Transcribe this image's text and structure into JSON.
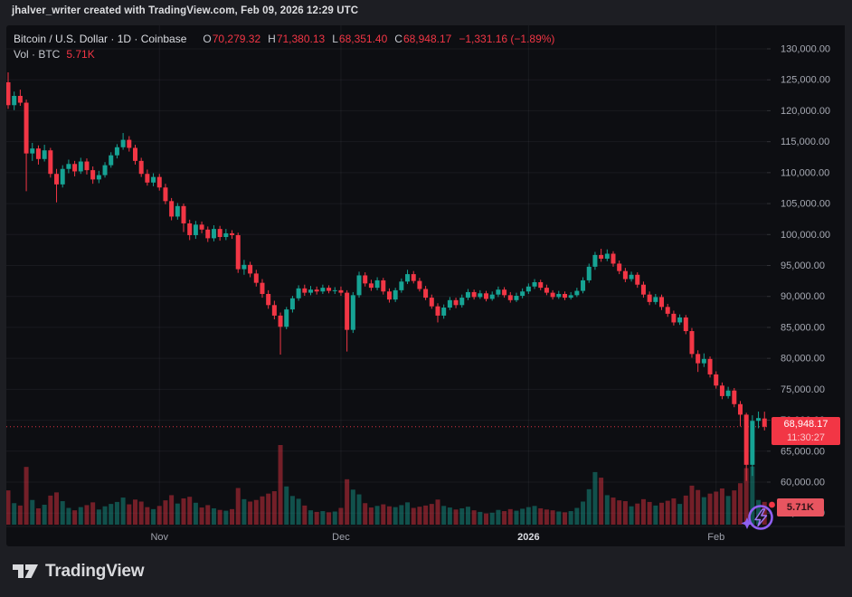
{
  "attribution": "jhalver_writer created with TradingView.com, Feb 09, 2026 12:29 UTC",
  "header": {
    "symbol_line": "Bitcoin / U.S. Dollar · 1D · Coinbase",
    "ohlc": {
      "o_label": "O",
      "o": "70,279.32",
      "h_label": "H",
      "h": "71,380.13",
      "l_label": "L",
      "l": "68,351.40",
      "c_label": "C",
      "c": "68,948.17",
      "change": "−1,331.16 (−1.89%)"
    },
    "volume_line": {
      "label": "Vol · BTC",
      "value": "5.71K"
    }
  },
  "price_axis_label": {
    "price": "68,948.17",
    "countdown": "11:30:27"
  },
  "volume_axis_label": "5.71K",
  "footer": {
    "brand": "TradingView"
  },
  "colors": {
    "up": "#16a394",
    "down": "#f23645",
    "volume_up": "rgba(22,163,148,0.45)",
    "volume_down": "rgba(242,54,69,0.45)",
    "grid": "rgba(240,243,250,0.055)",
    "axis_text": "#a6a9b3",
    "month_text": "#9fa2ac",
    "year_text": "#dadce2",
    "last_price_line": "#f23645",
    "chart_bg": "#0d0e12",
    "frame_bg": "#1d1e23",
    "badge_icon_purple": "#8f5ff0"
  },
  "chart_data": {
    "type": "candlestick+volume",
    "title": "Bitcoin / U.S. Dollar",
    "interval": "1D",
    "exchange": "Coinbase",
    "last_price": 68948.17,
    "countdown": "11:30:27",
    "last_volume_kbtc": 5.71,
    "y_axis": {
      "tick_min": 55000,
      "tick_max": 130000,
      "tick_step": 5000,
      "format": "thousands with 2 decimals"
    },
    "x_axis": {
      "labels": [
        {
          "text": "Nov",
          "day_index": 25,
          "bold": false
        },
        {
          "text": "Dec",
          "day_index": 55,
          "bold": false
        },
        {
          "text": "2026",
          "day_index": 86,
          "bold": true
        },
        {
          "text": "Feb",
          "day_index": 117,
          "bold": false
        }
      ]
    },
    "columns": [
      "date",
      "open",
      "high",
      "low",
      "close",
      "volume_kbtc"
    ],
    "candles": [
      [
        "2025-10-07",
        124600,
        126200,
        120300,
        120900,
        8.6
      ],
      [
        "2025-10-08",
        120900,
        123100,
        120100,
        122400,
        5.4
      ],
      [
        "2025-10-09",
        122400,
        123400,
        120800,
        121300,
        4.8
      ],
      [
        "2025-10-10",
        121300,
        121800,
        107000,
        113100,
        14.5
      ],
      [
        "2025-10-11",
        113100,
        114800,
        111900,
        113900,
        6.2
      ],
      [
        "2025-10-12",
        113900,
        114400,
        111300,
        112200,
        4.1
      ],
      [
        "2025-10-13",
        112200,
        114500,
        111800,
        113600,
        5.0
      ],
      [
        "2025-10-14",
        113600,
        114000,
        109200,
        109800,
        7.3
      ],
      [
        "2025-10-15",
        109800,
        110600,
        105200,
        108100,
        8.1
      ],
      [
        "2025-10-16",
        108100,
        111200,
        107600,
        110600,
        5.9
      ],
      [
        "2025-10-17",
        110600,
        112100,
        109900,
        111400,
        4.2
      ],
      [
        "2025-10-18",
        111400,
        111900,
        109400,
        110200,
        3.6
      ],
      [
        "2025-10-19",
        110200,
        112400,
        109800,
        111800,
        4.4
      ],
      [
        "2025-10-20",
        111800,
        112300,
        109700,
        110400,
        4.9
      ],
      [
        "2025-10-21",
        110400,
        111000,
        108200,
        108900,
        5.6
      ],
      [
        "2025-10-22",
        108900,
        110300,
        108300,
        109600,
        3.8
      ],
      [
        "2025-10-23",
        109600,
        111700,
        109200,
        111200,
        4.6
      ],
      [
        "2025-10-24",
        111200,
        113300,
        110800,
        112800,
        5.2
      ],
      [
        "2025-10-25",
        112800,
        114600,
        112300,
        114100,
        5.7
      ],
      [
        "2025-10-26",
        114100,
        116400,
        113700,
        115300,
        6.8
      ],
      [
        "2025-10-27",
        115300,
        115900,
        113400,
        114000,
        5.1
      ],
      [
        "2025-10-28",
        114000,
        114500,
        111300,
        111900,
        6.3
      ],
      [
        "2025-10-29",
        111900,
        112400,
        109300,
        109800,
        5.8
      ],
      [
        "2025-10-30",
        109800,
        110500,
        107900,
        108400,
        4.4
      ],
      [
        "2025-10-31",
        108400,
        109900,
        107800,
        109300,
        3.9
      ],
      [
        "2025-11-01",
        109300,
        109800,
        107100,
        107600,
        4.7
      ],
      [
        "2025-11-02",
        107600,
        108200,
        104900,
        105400,
        6.1
      ],
      [
        "2025-11-03",
        105400,
        105900,
        102300,
        102900,
        7.4
      ],
      [
        "2025-11-04",
        102900,
        105100,
        102400,
        104600,
        5.3
      ],
      [
        "2025-11-05",
        104600,
        105000,
        100400,
        101800,
        6.6
      ],
      [
        "2025-11-06",
        101800,
        102400,
        99100,
        99900,
        7.0
      ],
      [
        "2025-11-07",
        99900,
        102200,
        99300,
        101600,
        5.5
      ],
      [
        "2025-11-08",
        101600,
        102100,
        100200,
        100800,
        4.3
      ],
      [
        "2025-11-09",
        100800,
        101300,
        98800,
        99400,
        4.9
      ],
      [
        "2025-11-10",
        99400,
        101500,
        98900,
        100900,
        4.1
      ],
      [
        "2025-11-11",
        100900,
        101400,
        99000,
        99600,
        3.7
      ],
      [
        "2025-11-12",
        99600,
        100900,
        99100,
        100200,
        3.5
      ],
      [
        "2025-11-13",
        100200,
        100700,
        99300,
        99900,
        3.9
      ],
      [
        "2025-11-14",
        99900,
        100300,
        93800,
        94400,
        9.2
      ],
      [
        "2025-11-15",
        94400,
        95900,
        93500,
        95100,
        6.4
      ],
      [
        "2025-11-16",
        95100,
        95600,
        93100,
        93700,
        5.8
      ],
      [
        "2025-11-17",
        93700,
        94300,
        91600,
        92200,
        6.2
      ],
      [
        "2025-11-18",
        92200,
        92800,
        89800,
        90400,
        7.1
      ],
      [
        "2025-11-19",
        90400,
        91000,
        88000,
        88600,
        7.8
      ],
      [
        "2025-11-20",
        88600,
        89300,
        86300,
        86900,
        8.4
      ],
      [
        "2025-11-21",
        86900,
        87400,
        80600,
        85100,
        20.0
      ],
      [
        "2025-11-22",
        85100,
        88300,
        84700,
        87900,
        9.6
      ],
      [
        "2025-11-23",
        87900,
        90100,
        87400,
        89700,
        7.2
      ],
      [
        "2025-11-24",
        89700,
        91800,
        89300,
        91300,
        6.5
      ],
      [
        "2025-11-25",
        91300,
        91900,
        90100,
        90600,
        4.8
      ],
      [
        "2025-11-26",
        90600,
        91700,
        90200,
        91100,
        3.6
      ],
      [
        "2025-11-27",
        91100,
        91600,
        90300,
        90800,
        3.2
      ],
      [
        "2025-11-28",
        90800,
        91900,
        90400,
        91400,
        3.4
      ],
      [
        "2025-11-29",
        91400,
        91800,
        90500,
        90900,
        3.1
      ],
      [
        "2025-11-30",
        90900,
        91500,
        90400,
        91000,
        3.3
      ],
      [
        "2025-12-01",
        91000,
        91600,
        90100,
        90600,
        4.2
      ],
      [
        "2025-12-02",
        90600,
        91000,
        81100,
        84600,
        11.4
      ],
      [
        "2025-12-03",
        84600,
        90700,
        84100,
        90200,
        8.8
      ],
      [
        "2025-12-04",
        90200,
        94000,
        89800,
        93400,
        7.6
      ],
      [
        "2025-12-05",
        93400,
        93900,
        91600,
        92100,
        5.4
      ],
      [
        "2025-12-06",
        92100,
        92700,
        90900,
        91400,
        4.3
      ],
      [
        "2025-12-07",
        91400,
        93100,
        91000,
        92600,
        4.7
      ],
      [
        "2025-12-08",
        92600,
        93000,
        90300,
        90800,
        5.1
      ],
      [
        "2025-12-09",
        90800,
        91300,
        89000,
        89500,
        4.6
      ],
      [
        "2025-12-10",
        89500,
        91400,
        89100,
        91000,
        4.4
      ],
      [
        "2025-12-11",
        91000,
        92900,
        90600,
        92400,
        4.9
      ],
      [
        "2025-12-12",
        92400,
        94300,
        92000,
        93600,
        5.6
      ],
      [
        "2025-12-13",
        93600,
        94100,
        92100,
        92500,
        4.2
      ],
      [
        "2025-12-14",
        92500,
        93000,
        90800,
        91200,
        4.5
      ],
      [
        "2025-12-15",
        91200,
        91700,
        89400,
        89800,
        4.8
      ],
      [
        "2025-12-16",
        89800,
        90300,
        88000,
        88400,
        5.2
      ],
      [
        "2025-12-17",
        88400,
        88900,
        85800,
        86900,
        6.3
      ],
      [
        "2025-12-18",
        86900,
        88700,
        86400,
        88200,
        4.7
      ],
      [
        "2025-12-19",
        88200,
        89900,
        87800,
        89400,
        4.3
      ],
      [
        "2025-12-20",
        89400,
        89800,
        88100,
        88600,
        3.8
      ],
      [
        "2025-12-21",
        88600,
        90300,
        88200,
        89800,
        4.1
      ],
      [
        "2025-12-22",
        89800,
        91200,
        89400,
        90700,
        4.5
      ],
      [
        "2025-12-23",
        90700,
        91100,
        89500,
        89900,
        3.6
      ],
      [
        "2025-12-24",
        89900,
        91000,
        89600,
        90500,
        3.2
      ],
      [
        "2025-12-25",
        90500,
        90900,
        89200,
        89600,
        2.8
      ],
      [
        "2025-12-26",
        89600,
        90800,
        89300,
        90300,
        3.0
      ],
      [
        "2025-12-27",
        90300,
        91600,
        89900,
        91100,
        3.7
      ],
      [
        "2025-12-28",
        91100,
        91500,
        89800,
        90200,
        3.4
      ],
      [
        "2025-12-29",
        90200,
        90700,
        89000,
        89400,
        3.9
      ],
      [
        "2025-12-30",
        89400,
        90600,
        89100,
        90100,
        3.5
      ],
      [
        "2025-12-31",
        90100,
        91300,
        89700,
        90800,
        4.0
      ],
      [
        "2026-01-01",
        90800,
        92100,
        90400,
        91600,
        4.4
      ],
      [
        "2026-01-02",
        91600,
        92800,
        91200,
        92300,
        4.7
      ],
      [
        "2026-01-03",
        92300,
        92700,
        91000,
        91400,
        4.1
      ],
      [
        "2026-01-04",
        91400,
        91900,
        90200,
        90600,
        3.8
      ],
      [
        "2026-01-05",
        90600,
        91000,
        89500,
        89900,
        3.6
      ],
      [
        "2026-01-06",
        89900,
        90900,
        89600,
        90400,
        3.3
      ],
      [
        "2026-01-07",
        90400,
        90800,
        89400,
        89800,
        3.1
      ],
      [
        "2026-01-08",
        89800,
        90700,
        89500,
        90200,
        3.4
      ],
      [
        "2026-01-09",
        90200,
        91400,
        89900,
        90900,
        4.2
      ],
      [
        "2026-01-10",
        90900,
        93100,
        90500,
        92600,
        5.8
      ],
      [
        "2026-01-11",
        92600,
        95300,
        92200,
        94800,
        8.9
      ],
      [
        "2026-01-12",
        94800,
        97200,
        94300,
        96700,
        13.2
      ],
      [
        "2026-01-13",
        96700,
        97700,
        95600,
        96100,
        11.8
      ],
      [
        "2026-01-14",
        96100,
        97600,
        95700,
        96900,
        7.4
      ],
      [
        "2026-01-15",
        96900,
        97300,
        94800,
        95300,
        6.8
      ],
      [
        "2026-01-16",
        95300,
        95800,
        93600,
        94100,
        6.1
      ],
      [
        "2026-01-17",
        94100,
        94600,
        92300,
        92800,
        5.9
      ],
      [
        "2026-01-18",
        92800,
        94000,
        92400,
        93500,
        4.6
      ],
      [
        "2026-01-19",
        93500,
        93900,
        91400,
        91900,
        5.3
      ],
      [
        "2026-01-20",
        91900,
        92400,
        89800,
        90300,
        6.4
      ],
      [
        "2026-01-21",
        90300,
        90800,
        88600,
        89100,
        5.7
      ],
      [
        "2026-01-22",
        89100,
        90400,
        88700,
        89900,
        4.8
      ],
      [
        "2026-01-23",
        89900,
        90300,
        87800,
        88300,
        5.5
      ],
      [
        "2026-01-24",
        88300,
        88800,
        86700,
        87200,
        6.0
      ],
      [
        "2026-01-25",
        87200,
        87700,
        85300,
        85800,
        6.6
      ],
      [
        "2026-01-26",
        85800,
        87100,
        85400,
        86600,
        5.2
      ],
      [
        "2026-01-27",
        86600,
        87000,
        83900,
        84400,
        7.3
      ],
      [
        "2026-01-28",
        84400,
        84900,
        80100,
        80700,
        9.8
      ],
      [
        "2026-01-29",
        80700,
        81300,
        77800,
        79200,
        8.7
      ],
      [
        "2026-01-30",
        79200,
        80800,
        78600,
        79900,
        6.9
      ],
      [
        "2026-01-31",
        79900,
        80300,
        76900,
        77400,
        7.8
      ],
      [
        "2026-02-01",
        77400,
        77900,
        75100,
        75600,
        8.3
      ],
      [
        "2026-02-02",
        75600,
        76100,
        73400,
        73900,
        9.1
      ],
      [
        "2026-02-03",
        73900,
        75400,
        73500,
        74800,
        7.2
      ],
      [
        "2026-02-04",
        74800,
        75200,
        72100,
        72600,
        8.6
      ],
      [
        "2026-02-05",
        72600,
        73100,
        69000,
        70900,
        10.4
      ],
      [
        "2026-02-06",
        70900,
        71200,
        60200,
        62800,
        14.2
      ],
      [
        "2026-02-07",
        62800,
        70800,
        61000,
        69900,
        14.6
      ],
      [
        "2026-02-08",
        69900,
        71400,
        68700,
        70350,
        6.2
      ],
      [
        "2026-02-09",
        70279.32,
        71380.13,
        68351.4,
        68948.17,
        5.71
      ]
    ]
  }
}
